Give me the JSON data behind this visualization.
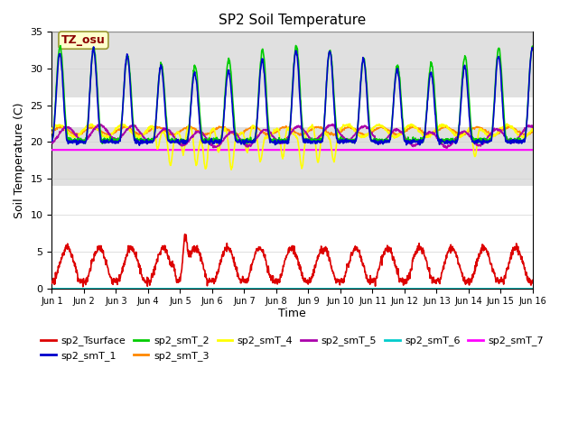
{
  "title": "SP2 Soil Temperature",
  "ylabel": "Soil Temperature (C)",
  "xlabel": "Time",
  "ylim": [
    0,
    35
  ],
  "xlim": [
    0,
    15
  ],
  "xtick_labels": [
    "Jun 1",
    "Jun 2",
    "Jun 3",
    "Jun 4",
    "Jun 5",
    "Jun 6",
    "Jun 7",
    "Jun 8",
    "Jun 9",
    "Jun 10",
    "Jun 11",
    "Jun 12",
    "Jun 13",
    "Jun 14",
    "Jun 15",
    "Jun 16"
  ],
  "ytick_labels": [
    0,
    5,
    10,
    15,
    20,
    25,
    30,
    35
  ],
  "annotation_text": "TZ_osu",
  "annotation_color": "#8b0000",
  "annotation_bg": "#ffffcc",
  "colors": {
    "sp2_Tsurface": "#dd0000",
    "sp2_smT_1": "#0000cc",
    "sp2_smT_2": "#00cc00",
    "sp2_smT_3": "#ff8800",
    "sp2_smT_4": "#ffff00",
    "sp2_smT_5": "#aa00aa",
    "sp2_smT_6": "#00cccc",
    "sp2_smT_7": "#ff00ff"
  },
  "gray_band_y1": 14,
  "gray_band_y2": 22,
  "gray_band2_y1": 26,
  "gray_band2_y2": 35,
  "gray_color": "#e0e0e0",
  "background_color": "#ffffff",
  "smT7_value": 18.9,
  "smT6_value": 0.0,
  "figsize": [
    6.4,
    4.8
  ],
  "dpi": 100
}
